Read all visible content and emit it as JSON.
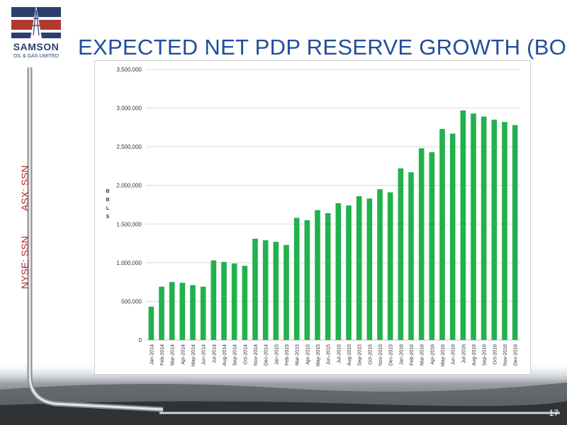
{
  "logo": {
    "name": "SAMSON",
    "subtitle": "OIL & GAS LIMITED"
  },
  "title": "EXPECTED NET PDP RESERVE GROWTH (BOE)",
  "tickers": {
    "asx": "ASX: SSN",
    "nyse": "NYSE: SSN"
  },
  "page_number": "17",
  "colors": {
    "bar": "#22b14c",
    "title": "#1f4e9c",
    "ticker": "#b2262c",
    "logo_blue": "#2a3f6e",
    "logo_red": "#b03a2e"
  },
  "chart_data": {
    "type": "bar",
    "title": "",
    "xlabel": "",
    "ylabel": "BBLS",
    "ylim": [
      0,
      3500000
    ],
    "yticks": [
      0,
      500000,
      1000000,
      1500000,
      2000000,
      2500000,
      3000000,
      3500000
    ],
    "ytick_labels": [
      "0",
      "500,000",
      "1,000,000",
      "1,500,000",
      "2,000,000",
      "2,500,000",
      "3,000,000",
      "3,500,000"
    ],
    "grid": true,
    "legend": "none",
    "categories": [
      "Jan-2014",
      "Feb-2014",
      "Mar-2014",
      "Apr-2014",
      "May-2014",
      "Jun-2014",
      "Jul-2014",
      "Aug-2014",
      "Sep-2014",
      "Oct-2014",
      "Nov-2014",
      "Dec-2014",
      "Jan-2015",
      "Feb-2015",
      "Mar-2015",
      "Apr-2015",
      "May-2015",
      "Jun-2015",
      "Jul-2015",
      "Aug-2015",
      "Sep-2015",
      "Oct-2015",
      "Nov-2015",
      "Dec-2015",
      "Jan-2016",
      "Feb-2016",
      "Mar-2016",
      "Apr-2016",
      "May-2016",
      "Jun-2016",
      "Jul-2016",
      "Aug-2016",
      "Sep-2016",
      "Oct-2016",
      "Nov-2016",
      "Dec-2016"
    ],
    "values": [
      430000,
      690000,
      750000,
      740000,
      710000,
      690000,
      1030000,
      1010000,
      990000,
      960000,
      1310000,
      1290000,
      1270000,
      1230000,
      1580000,
      1550000,
      1680000,
      1640000,
      1770000,
      1740000,
      1860000,
      1830000,
      1950000,
      1910000,
      2220000,
      2170000,
      2480000,
      2430000,
      2730000,
      2670000,
      2970000,
      2930000,
      2890000,
      2850000,
      2820000,
      2780000
    ]
  }
}
